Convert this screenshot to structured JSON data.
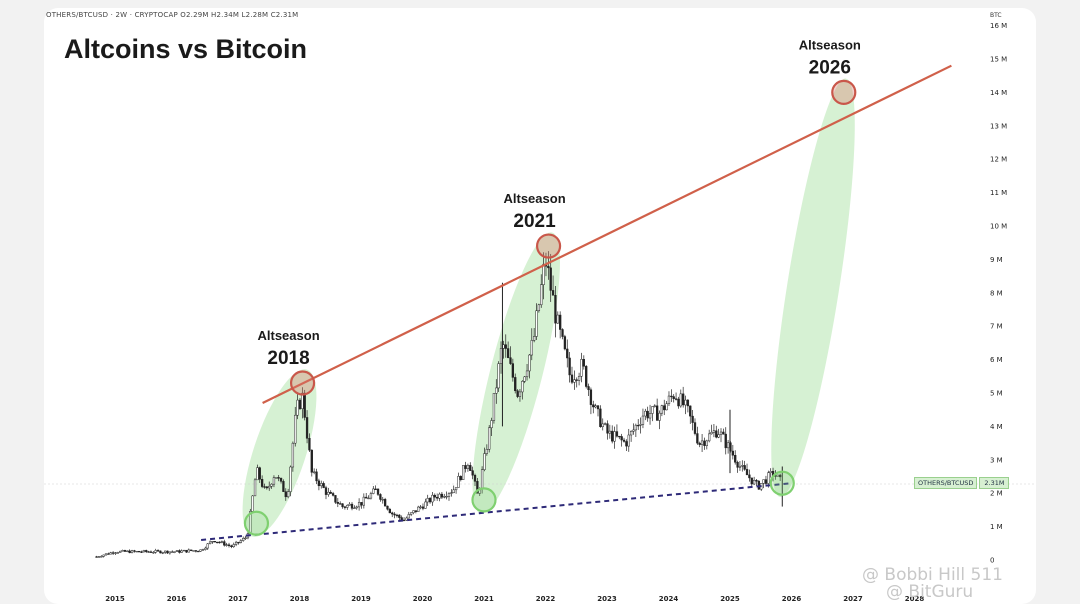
{
  "ticker_line": "OTHERS/BTCUSD · 2W · CRYPTOCAP  O2.29M  H2.34M  L2.28M  C2.31M",
  "title": "Altcoins vs Bitcoin",
  "axis_unit": "BTC",
  "price_tag": {
    "symbol": "OTHERS/BTCUSD",
    "value": "2.31M"
  },
  "watermark": {
    "line1": "@ Bobbi Hill 511",
    "line2": "@ BitGuru"
  },
  "colors": {
    "trend_top": "#d0604a",
    "trend_bottom": "#2e2a78",
    "ellipse_fill": "#cfeecb",
    "circle_red": "#c9574a",
    "circle_green": "#7fd070",
    "candles": "#222222"
  },
  "chart_data": {
    "type": "line",
    "title": "Altcoins vs Bitcoin",
    "ylabel": "BTC",
    "xlabel": "",
    "ylim": [
      0,
      16000000
    ],
    "xlim": [
      2014.6,
      2028.3
    ],
    "y_ticks": [
      0,
      1000000,
      2000000,
      3000000,
      4000000,
      5000000,
      6000000,
      7000000,
      8000000,
      9000000,
      10000000,
      11000000,
      12000000,
      13000000,
      14000000,
      15000000,
      16000000
    ],
    "y_tick_labels": [
      "0",
      "1 M",
      "2 M",
      "3 M",
      "4 M",
      "5 M",
      "6 M",
      "7 M",
      "8 M",
      "9 M",
      "10 M",
      "11 M",
      "12 M",
      "13 M",
      "14 M",
      "15 M",
      "16 M"
    ],
    "x_ticks": [
      2015,
      2016,
      2017,
      2018,
      2019,
      2020,
      2021,
      2022,
      2023,
      2024,
      2025,
      2026,
      2027,
      2028
    ],
    "x_tick_labels": [
      "2015",
      "2016",
      "2017",
      "2018",
      "2019",
      "2020",
      "2021",
      "2022",
      "2023",
      "2024",
      "2025",
      "2026",
      "2027",
      "2028"
    ],
    "series": [
      {
        "x": [
          2014.7,
          2015.0,
          2015.5,
          2016.0,
          2016.4,
          2016.6,
          2016.9,
          2017.15,
          2017.3,
          2017.45,
          2017.6,
          2017.8,
          2017.95,
          2018.05,
          2018.2,
          2018.45,
          2018.7,
          2019.0,
          2019.25,
          2019.5,
          2019.7,
          2019.9,
          2020.2,
          2020.5,
          2020.75,
          2020.9,
          2021.1,
          2021.3,
          2021.55,
          2021.8,
          2022.0,
          2022.2,
          2022.4,
          2022.6,
          2022.8,
          2023.0,
          2023.3,
          2023.6,
          2023.85,
          2024.1,
          2024.3,
          2024.5,
          2024.8,
          2025.0,
          2025.2,
          2025.45,
          2025.7,
          2025.85
        ],
        "y": [
          100000,
          250000,
          250000,
          250000,
          300000,
          600000,
          400000,
          700000,
          2700000,
          2000000,
          2600000,
          1900000,
          4500000,
          4900000,
          2600000,
          2000000,
          1600000,
          1700000,
          2100000,
          1400000,
          1200000,
          1500000,
          1900000,
          2100000,
          3000000,
          1900000,
          4000000,
          6500000,
          5000000,
          6500000,
          9000000,
          7000000,
          5500000,
          5800000,
          4500000,
          3800000,
          3500000,
          4400000,
          4400000,
          5000000,
          4500000,
          3500000,
          3900000,
          3300000,
          2700000,
          2200000,
          2600000,
          2300000
        ]
      }
    ],
    "trendlines": [
      {
        "x": [
          2017.4,
          2028.6
        ],
        "y": [
          4700000,
          14800000
        ]
      },
      {
        "x": [
          2016.4,
          2026.0
        ],
        "y": [
          600000,
          2300000
        ]
      }
    ],
    "annotations": [
      {
        "label_small": "Altseason",
        "label_big": "2018",
        "x": 2018.05,
        "y": 5300000
      },
      {
        "label_small": "Altseason",
        "label_big": "2021",
        "x": 2022.05,
        "y": 9400000
      },
      {
        "label_small": "Altseason",
        "label_big": "2026",
        "x": 2026.85,
        "y": 14000000
      }
    ],
    "lows": [
      {
        "x": 2017.3,
        "y": 1100000
      },
      {
        "x": 2021.0,
        "y": 1800000
      },
      {
        "x": 2025.85,
        "y": 2300000
      }
    ],
    "grid": false,
    "legend": "none"
  }
}
